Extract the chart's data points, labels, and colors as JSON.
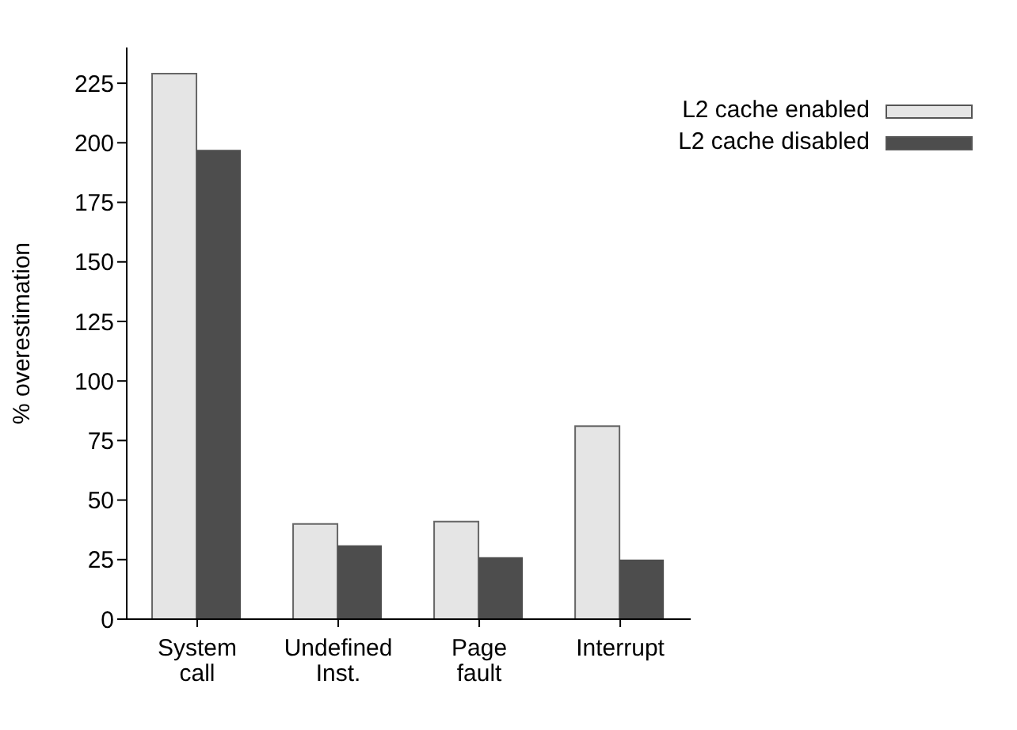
{
  "chart_data": {
    "type": "bar",
    "ylabel": "% overestimation",
    "categories": [
      "System call",
      "Undefined Inst.",
      "Page fault",
      "Interrupt"
    ],
    "series": [
      {
        "name": "L2 cache enabled",
        "color": "#e5e5e5",
        "values": [
          229,
          40,
          41,
          81
        ]
      },
      {
        "name": "L2 cache disabled",
        "color": "#4d4d4d",
        "values": [
          197,
          31,
          26,
          25
        ]
      }
    ],
    "ylim": [
      0,
      240
    ],
    "yticks": [
      0,
      25,
      50,
      75,
      100,
      125,
      150,
      175,
      200,
      225
    ],
    "grid": false,
    "legend": "top right"
  }
}
